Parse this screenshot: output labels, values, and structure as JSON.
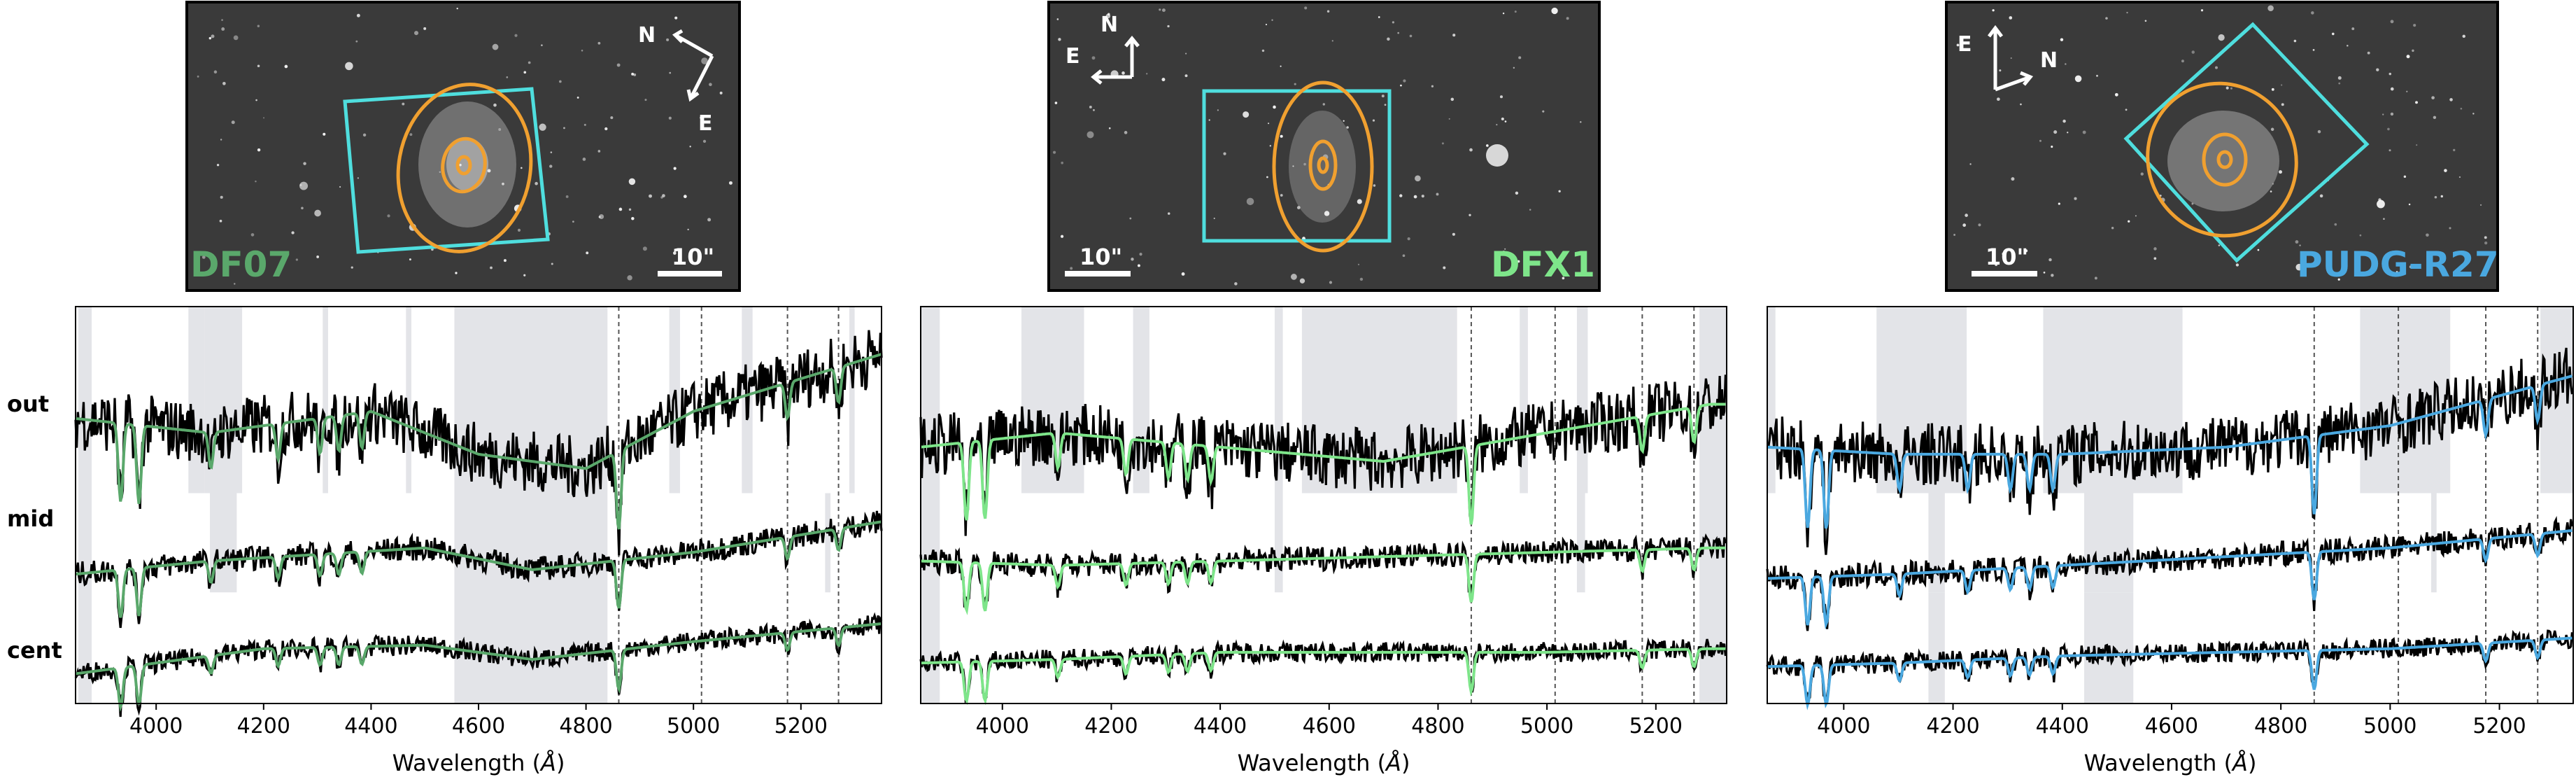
{
  "figure": {
    "xlabel_prefix": "Wavelength (",
    "xlabel_unit": "Å",
    "xlabel_suffix": ")",
    "row_labels": [
      "out",
      "mid",
      "cent"
    ],
    "scale_bar_label": "10\"",
    "compass": {
      "north": "N",
      "east": "E"
    },
    "colors": {
      "spectrum": "#000000",
      "aperture_box": "#4fdede",
      "ellipses": "#f0a030",
      "masked_region": "#e3e4e8",
      "line_marker": "#555555"
    }
  },
  "chart_data": [
    {
      "type": "line",
      "galaxy": "DF07",
      "galaxy_color": "#5aa86b",
      "model_color": "#5aa86b",
      "xlabel": "Wavelength (Å)",
      "xlim": [
        3850,
        5350
      ],
      "xticks": [
        4000,
        4200,
        4400,
        4600,
        4800,
        5000,
        5200
      ],
      "line_markers": [
        4861,
        5015,
        5175,
        5270
      ],
      "series": [
        {
          "name": "out",
          "trend": [
            [
              3850,
              0.55
            ],
            [
              4100,
              0.45
            ],
            [
              4400,
              0.6
            ],
            [
              4600,
              0.3
            ],
            [
              4800,
              0.2
            ],
            [
              5000,
              0.6
            ],
            [
              5350,
              1.0
            ]
          ]
        },
        {
          "name": "mid",
          "trend": [
            [
              3850,
              0.3
            ],
            [
              4100,
              0.45
            ],
            [
              4500,
              0.6
            ],
            [
              4700,
              0.35
            ],
            [
              5000,
              0.55
            ],
            [
              5350,
              0.9
            ]
          ]
        },
        {
          "name": "cent",
          "trend": [
            [
              3850,
              0.25
            ],
            [
              4200,
              0.6
            ],
            [
              4500,
              0.65
            ],
            [
              4700,
              0.45
            ],
            [
              5000,
              0.7
            ],
            [
              5350,
              0.95
            ]
          ]
        }
      ],
      "masked_regions": [
        {
          "row": "all",
          "from": 3855,
          "to": 3880
        },
        {
          "row": "out",
          "from": 4060,
          "to": 4090
        },
        {
          "row": "out",
          "from": 4090,
          "to": 4160
        },
        {
          "row": "out",
          "from": 4310,
          "to": 4320
        },
        {
          "row": "out",
          "from": 4465,
          "to": 4475
        },
        {
          "row": "all",
          "from": 4555,
          "to": 4840
        },
        {
          "row": "out",
          "from": 4955,
          "to": 4975
        },
        {
          "row": "out",
          "from": 5090,
          "to": 5110
        },
        {
          "row": "out",
          "from": 5290,
          "to": 5300
        },
        {
          "row": "mid",
          "from": 4100,
          "to": 4150
        },
        {
          "row": "mid",
          "from": 5245,
          "to": 5255
        }
      ]
    },
    {
      "type": "line",
      "galaxy": "DFX1",
      "galaxy_color": "#7ee58a",
      "model_color": "#7ee58a",
      "xlabel": "Wavelength (Å)",
      "xlim": [
        3850,
        5330
      ],
      "xticks": [
        4000,
        4200,
        4400,
        4600,
        4800,
        5000,
        5200
      ],
      "line_markers": [
        4861,
        5015,
        5175,
        5270
      ],
      "series": [
        {
          "name": "out",
          "trend": [
            [
              3850,
              0.35
            ],
            [
              4100,
              0.45
            ],
            [
              4400,
              0.35
            ],
            [
              4700,
              0.25
            ],
            [
              5000,
              0.45
            ],
            [
              5300,
              0.65
            ]
          ]
        },
        {
          "name": "mid",
          "trend": [
            [
              3850,
              0.45
            ],
            [
              4100,
              0.4
            ],
            [
              4400,
              0.45
            ],
            [
              4700,
              0.5
            ],
            [
              5000,
              0.55
            ],
            [
              5300,
              0.6
            ]
          ]
        },
        {
          "name": "cent",
          "trend": [
            [
              3850,
              0.4
            ],
            [
              4100,
              0.45
            ],
            [
              4400,
              0.55
            ],
            [
              4700,
              0.55
            ],
            [
              5000,
              0.55
            ],
            [
              5300,
              0.6
            ]
          ]
        }
      ],
      "masked_regions": [
        {
          "row": "all",
          "from": 3850,
          "to": 3885
        },
        {
          "row": "out",
          "from": 4035,
          "to": 4150
        },
        {
          "row": "out",
          "from": 4240,
          "to": 4270
        },
        {
          "row": "out",
          "from": 4500,
          "to": 4515
        },
        {
          "row": "out",
          "from": 4550,
          "to": 4835
        },
        {
          "row": "out",
          "from": 4950,
          "to": 4965
        },
        {
          "row": "out",
          "from": 5055,
          "to": 5075
        },
        {
          "row": "mid",
          "from": 4500,
          "to": 4515
        },
        {
          "row": "mid",
          "from": 5055,
          "to": 5070
        },
        {
          "row": "all",
          "from": 5280,
          "to": 5330
        }
      ]
    },
    {
      "type": "line",
      "galaxy": "PUDG-R27",
      "galaxy_color": "#4aa8e0",
      "model_color": "#4aa8e0",
      "xlabel": "Wavelength (Å)",
      "xlim": [
        3860,
        5335
      ],
      "xticks": [
        4000,
        4200,
        4400,
        4600,
        4800,
        5000,
        5200
      ],
      "line_markers": [
        4861,
        5015,
        5175,
        5270
      ],
      "series": [
        {
          "name": "out",
          "trend": [
            [
              3860,
              0.35
            ],
            [
              4100,
              0.3
            ],
            [
              4400,
              0.3
            ],
            [
              4700,
              0.35
            ],
            [
              5000,
              0.5
            ],
            [
              5335,
              0.85
            ]
          ]
        },
        {
          "name": "mid",
          "trend": [
            [
              3860,
              0.25
            ],
            [
              4100,
              0.3
            ],
            [
              4400,
              0.4
            ],
            [
              4700,
              0.5
            ],
            [
              5000,
              0.6
            ],
            [
              5335,
              0.8
            ]
          ]
        },
        {
          "name": "cent",
          "trend": [
            [
              3860,
              0.35
            ],
            [
              4100,
              0.4
            ],
            [
              4400,
              0.5
            ],
            [
              4700,
              0.55
            ],
            [
              5000,
              0.6
            ],
            [
              5335,
              0.75
            ]
          ]
        }
      ],
      "masked_regions": [
        {
          "row": "out",
          "from": 3860,
          "to": 3875
        },
        {
          "row": "out",
          "from": 4060,
          "to": 4225
        },
        {
          "row": "out",
          "from": 4365,
          "to": 4620
        },
        {
          "row": "out",
          "from": 4945,
          "to": 5110
        },
        {
          "row": "out",
          "from": 5275,
          "to": 5335
        },
        {
          "row": "mid",
          "from": 4155,
          "to": 4185
        },
        {
          "row": "mid",
          "from": 4440,
          "to": 4530
        },
        {
          "row": "mid",
          "from": 5075,
          "to": 5085
        },
        {
          "row": "cent",
          "from": 4155,
          "to": 4185
        },
        {
          "row": "cent",
          "from": 4440,
          "to": 4530
        }
      ]
    }
  ]
}
